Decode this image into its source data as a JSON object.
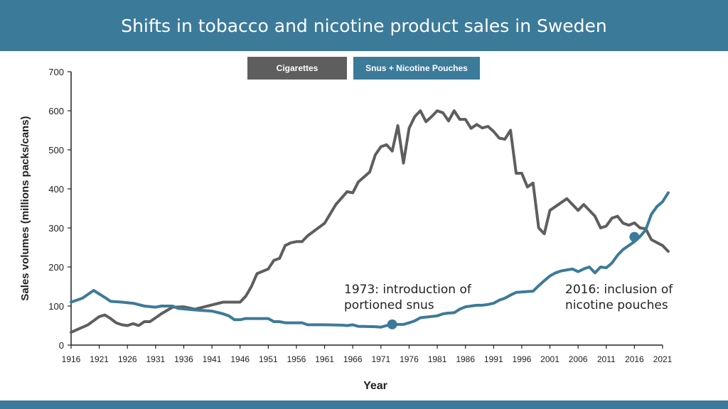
{
  "title": "Shifts in tobacco and nicotine product sales in Sweden",
  "colors": {
    "banner": "#3c7a9a",
    "cigarettes": "#5e5e5e",
    "snus": "#3c7a9a",
    "axis": "#222222"
  },
  "legend": {
    "items": [
      "Cigarettes",
      "Snus + Nicotine Pouches"
    ],
    "placement": "top-center"
  },
  "chart_data": {
    "type": "line",
    "title": "Shifts in tobacco and nicotine product sales in Sweden",
    "xlabel": "Year",
    "ylabel": "Sales volumes (millions packs/cans)",
    "xlim": [
      1916,
      2021
    ],
    "ylim": [
      0,
      700
    ],
    "xticks": [
      "1916",
      "1921",
      "1926",
      "1931",
      "1936",
      "1941",
      "1946",
      "1951",
      "1956",
      "1961",
      "1966",
      "1971",
      "1976",
      "1981",
      "1986",
      "1991",
      "1996",
      "2001",
      "2006",
      "2011",
      "2016",
      "2021"
    ],
    "yticks": [
      "0",
      "100",
      "200",
      "300",
      "400",
      "500",
      "600",
      "700"
    ],
    "grid": false,
    "series": [
      {
        "name": "Cigarettes",
        "color": "#5e5e5e",
        "points": [
          [
            1916,
            33
          ],
          [
            1919,
            52
          ],
          [
            1921,
            73
          ],
          [
            1922,
            77
          ],
          [
            1923,
            68
          ],
          [
            1924,
            57
          ],
          [
            1925,
            52
          ],
          [
            1926,
            50
          ],
          [
            1927,
            55
          ],
          [
            1928,
            50
          ],
          [
            1929,
            60
          ],
          [
            1930,
            60
          ],
          [
            1931,
            70
          ],
          [
            1932,
            80
          ],
          [
            1934,
            97
          ],
          [
            1936,
            98
          ],
          [
            1938,
            92
          ],
          [
            1941,
            103
          ],
          [
            1943,
            110
          ],
          [
            1945,
            110
          ],
          [
            1946,
            110
          ],
          [
            1947,
            125
          ],
          [
            1948,
            150
          ],
          [
            1949,
            183
          ],
          [
            1951,
            195
          ],
          [
            1952,
            217
          ],
          [
            1953,
            222
          ],
          [
            1954,
            255
          ],
          [
            1955,
            262
          ],
          [
            1956,
            265
          ],
          [
            1957,
            265
          ],
          [
            1958,
            280
          ],
          [
            1961,
            312
          ],
          [
            1963,
            360
          ],
          [
            1965,
            393
          ],
          [
            1966,
            390
          ],
          [
            1967,
            418
          ],
          [
            1969,
            443
          ],
          [
            1970,
            487
          ],
          [
            1971,
            508
          ],
          [
            1972,
            513
          ],
          [
            1973,
            497
          ],
          [
            1974,
            562
          ],
          [
            1975,
            466
          ],
          [
            1976,
            555
          ],
          [
            1977,
            585
          ],
          [
            1978,
            600
          ],
          [
            1979,
            572
          ],
          [
            1980,
            585
          ],
          [
            1981,
            600
          ],
          [
            1982,
            595
          ],
          [
            1983,
            574
          ],
          [
            1984,
            600
          ],
          [
            1985,
            578
          ],
          [
            1986,
            578
          ],
          [
            1987,
            555
          ],
          [
            1988,
            565
          ],
          [
            1989,
            556
          ],
          [
            1990,
            560
          ],
          [
            1991,
            547
          ],
          [
            1992,
            530
          ],
          [
            1993,
            527
          ],
          [
            1994,
            550
          ],
          [
            1995,
            440
          ],
          [
            1996,
            440
          ],
          [
            1997,
            405
          ],
          [
            1998,
            415
          ],
          [
            1999,
            300
          ],
          [
            2000,
            285
          ],
          [
            2001,
            345
          ],
          [
            2002,
            355
          ],
          [
            2004,
            375
          ],
          [
            2006,
            345
          ],
          [
            2007,
            360
          ],
          [
            2009,
            330
          ],
          [
            2010,
            300
          ],
          [
            2011,
            305
          ],
          [
            2012,
            325
          ],
          [
            2013,
            330
          ],
          [
            2014,
            312
          ],
          [
            2015,
            307
          ],
          [
            2016,
            313
          ],
          [
            2017,
            300
          ],
          [
            2018,
            298
          ],
          [
            2019,
            270
          ],
          [
            2021,
            255
          ],
          [
            2022,
            240
          ]
        ]
      },
      {
        "name": "Snus + Nicotine Pouches",
        "color": "#3c7a9a",
        "points": [
          [
            1916,
            110
          ],
          [
            1918,
            120
          ],
          [
            1919,
            130
          ],
          [
            1920,
            140
          ],
          [
            1922,
            122
          ],
          [
            1923,
            112
          ],
          [
            1925,
            110
          ],
          [
            1927,
            107
          ],
          [
            1929,
            100
          ],
          [
            1931,
            97
          ],
          [
            1932,
            100
          ],
          [
            1934,
            100
          ],
          [
            1935,
            94
          ],
          [
            1938,
            90
          ],
          [
            1941,
            87
          ],
          [
            1943,
            80
          ],
          [
            1944,
            75
          ],
          [
            1945,
            65
          ],
          [
            1946,
            65
          ],
          [
            1947,
            68
          ],
          [
            1948,
            68
          ],
          [
            1950,
            68
          ],
          [
            1951,
            68
          ],
          [
            1952,
            60
          ],
          [
            1953,
            60
          ],
          [
            1954,
            57
          ],
          [
            1957,
            57
          ],
          [
            1958,
            52
          ],
          [
            1961,
            52
          ],
          [
            1964,
            51
          ],
          [
            1965,
            50
          ],
          [
            1966,
            52
          ],
          [
            1967,
            48
          ],
          [
            1970,
            47
          ],
          [
            1971,
            46
          ],
          [
            1972,
            50
          ],
          [
            1973,
            53
          ],
          [
            1975,
            53
          ],
          [
            1976,
            57
          ],
          [
            1977,
            62
          ],
          [
            1978,
            70
          ],
          [
            1981,
            75
          ],
          [
            1982,
            80
          ],
          [
            1983,
            82
          ],
          [
            1984,
            83
          ],
          [
            1985,
            92
          ],
          [
            1986,
            98
          ],
          [
            1987,
            100
          ],
          [
            1988,
            102
          ],
          [
            1989,
            102
          ],
          [
            1990,
            104
          ],
          [
            1991,
            107
          ],
          [
            1992,
            115
          ],
          [
            1993,
            120
          ],
          [
            1994,
            128
          ],
          [
            1995,
            135
          ],
          [
            1997,
            137
          ],
          [
            1998,
            138
          ],
          [
            1999,
            152
          ],
          [
            2000,
            165
          ],
          [
            2001,
            177
          ],
          [
            2002,
            185
          ],
          [
            2003,
            190
          ],
          [
            2005,
            195
          ],
          [
            2006,
            188
          ],
          [
            2007,
            195
          ],
          [
            2008,
            200
          ],
          [
            2009,
            185
          ],
          [
            2010,
            200
          ],
          [
            2011,
            198
          ],
          [
            2012,
            210
          ],
          [
            2013,
            230
          ],
          [
            2014,
            245
          ],
          [
            2015,
            255
          ],
          [
            2016,
            265
          ],
          [
            2017,
            278
          ],
          [
            2018,
            295
          ],
          [
            2019,
            335
          ],
          [
            2020,
            355
          ],
          [
            2021,
            367
          ],
          [
            2022,
            390
          ]
        ]
      }
    ],
    "annotations": [
      {
        "lines": [
          "1973: introduction of",
          "portioned snus"
        ],
        "x": 1973,
        "y": 53
      },
      {
        "lines": [
          "2016: inclusion of",
          "nicotine pouches"
        ],
        "x": 2016,
        "y": 277
      }
    ]
  }
}
